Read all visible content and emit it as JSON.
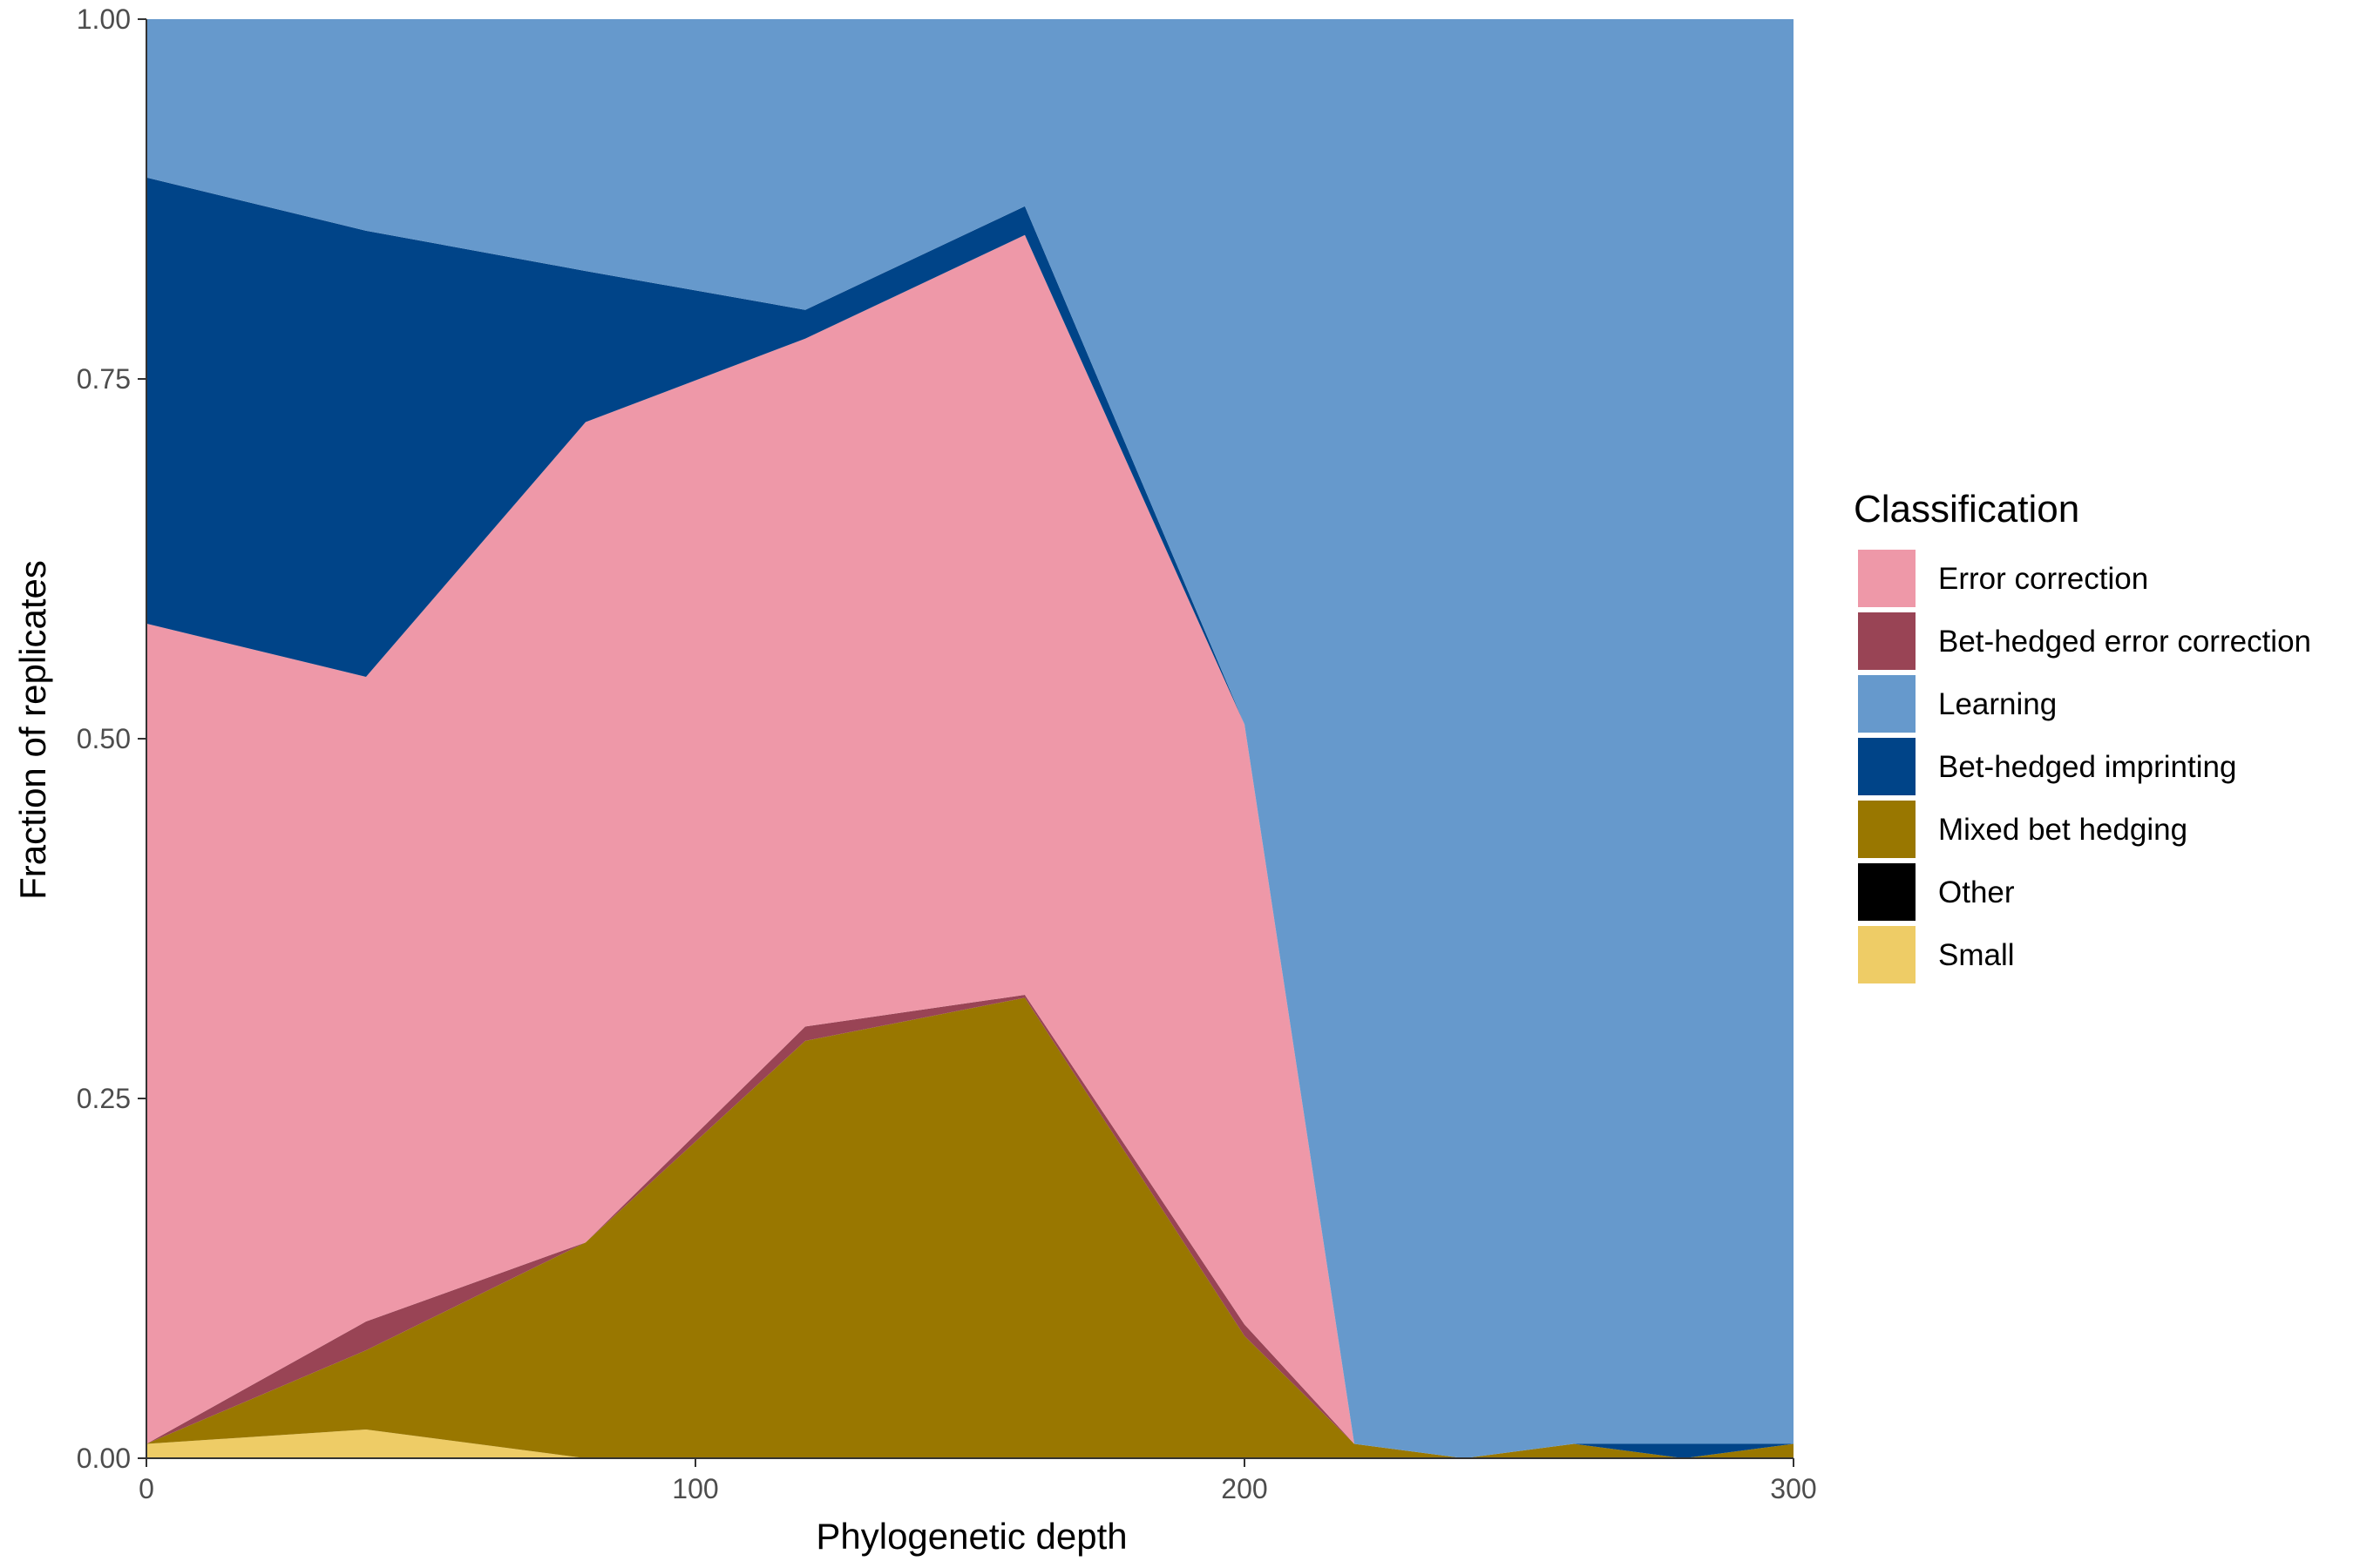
{
  "chart_data": {
    "type": "area",
    "stacked": true,
    "xlabel": "Phylogenetic depth",
    "ylabel": "Fraction of replicates",
    "xlim": [
      0,
      300
    ],
    "ylim": [
      0,
      1
    ],
    "x_ticks": [
      0,
      100,
      200,
      300
    ],
    "x_tick_labels": [
      "0",
      "100",
      "200",
      "300"
    ],
    "y_ticks": [
      0,
      0.25,
      0.5,
      0.75,
      1
    ],
    "y_tick_labels": [
      "0.00",
      "0.25",
      "0.50",
      "0.75",
      "1.00"
    ],
    "grid": false,
    "legend": {
      "title": "Classification",
      "placement": "right",
      "entries": [
        {
          "name": "Error correction",
          "color": "#ee98a8"
        },
        {
          "name": "Bet-hedged error correction",
          "color": "#994455"
        },
        {
          "name": "Learning",
          "color": "#6699cc"
        },
        {
          "name": "Bet-hedged imprinting",
          "color": "#004488"
        },
        {
          "name": "Mixed bet hedging",
          "color": "#997700"
        },
        {
          "name": "Other",
          "color": "#000000"
        },
        {
          "name": "Small",
          "color": "#eecc66"
        }
      ]
    },
    "x": [
      0,
      40,
      80,
      120,
      160,
      200,
      220,
      240,
      260,
      280,
      300
    ],
    "series": [
      {
        "name": "Small",
        "color": "#eecc66",
        "values": [
          0.01,
          0.02,
          0,
          0,
          0,
          0,
          0,
          0,
          0,
          0,
          0
        ]
      },
      {
        "name": "Other",
        "color": "#000000",
        "values": [
          0,
          0,
          0,
          0,
          0,
          0,
          0,
          0,
          0,
          0,
          0
        ]
      },
      {
        "name": "Mixed bet hedging",
        "color": "#997700",
        "values": [
          0,
          0.055,
          0.15,
          0.29,
          0.32,
          0.085,
          0.01,
          0,
          0.01,
          0,
          0.01
        ]
      },
      {
        "name": "Bet-hedged error correction",
        "color": "#994455",
        "values": [
          0,
          0.02,
          0,
          0.01,
          0.002,
          0.008,
          0,
          0,
          0,
          0,
          0
        ]
      },
      {
        "name": "Error correction",
        "color": "#ee98a8",
        "values": [
          0.57,
          0.448,
          0.57,
          0.478,
          0.528,
          0.417,
          0,
          0,
          0,
          0,
          0
        ]
      },
      {
        "name": "Bet-hedged imprinting",
        "color": "#004488",
        "values": [
          0.31,
          0.31,
          0.105,
          0.02,
          0.02,
          0,
          0,
          0,
          0,
          0.01,
          0
        ]
      },
      {
        "name": "Learning",
        "color": "#6699cc",
        "values": [
          0.11,
          0.147,
          0.175,
          0.202,
          0.13,
          0.49,
          0.99,
          1,
          0.99,
          0.99,
          0.99
        ]
      }
    ]
  }
}
